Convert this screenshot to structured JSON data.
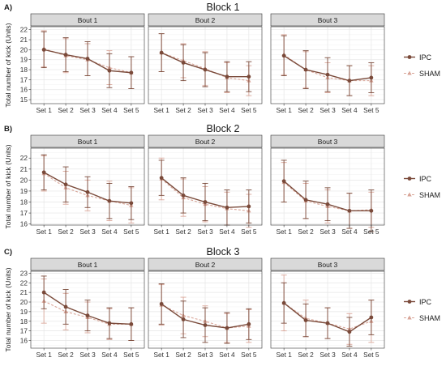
{
  "chart_data": {
    "type": "line",
    "ylabel": "Total number of kick (Units)",
    "categories": [
      "Set 1",
      "Set 2",
      "Set 3",
      "Set 4",
      "Set 5"
    ],
    "facets": [
      "Bout 1",
      "Bout 2",
      "Bout 3"
    ],
    "legend": {
      "position": "right",
      "entries": [
        {
          "name": "IPC",
          "color": "#7a4a3a"
        },
        {
          "name": "SHAM",
          "color": "#d9a699"
        }
      ]
    },
    "grid": true,
    "panels": [
      {
        "label": "A)",
        "title": "Block 1",
        "ylim": [
          14.6,
          22.3
        ],
        "yticks": [
          15,
          16,
          17,
          18,
          19,
          20,
          21,
          22
        ],
        "bouts": [
          {
            "IPC": {
              "mean": [
                20.0,
                19.5,
                19.1,
                17.9,
                17.7
              ],
              "err": [
                1.8,
                1.7,
                1.7,
                1.7,
                1.6
              ]
            },
            "SHAM": {
              "mean": [
                20.1,
                19.4,
                19.0,
                18.2,
                17.7
              ],
              "err": [
                1.8,
                1.7,
                1.6,
                1.7,
                1.6
              ]
            }
          },
          {
            "IPC": {
              "mean": [
                19.7,
                18.7,
                18.0,
                17.3,
                17.3
              ],
              "err": [
                1.9,
                1.8,
                1.7,
                1.5,
                1.5
              ]
            },
            "SHAM": {
              "mean": [
                19.7,
                18.9,
                18.1,
                17.2,
                16.9
              ],
              "err": [
                1.9,
                1.7,
                1.7,
                1.5,
                1.5
              ]
            }
          },
          {
            "IPC": {
              "mean": [
                19.4,
                18.0,
                17.5,
                16.9,
                17.2
              ],
              "err": [
                2.0,
                1.9,
                1.7,
                1.5,
                1.5
              ]
            },
            "SHAM": {
              "mean": [
                19.5,
                18.0,
                17.2,
                16.9,
                16.9
              ],
              "err": [
                2.0,
                1.8,
                1.5,
                1.5,
                1.5
              ]
            }
          }
        ]
      },
      {
        "label": "B)",
        "title": "Block 2",
        "ylim": [
          15.9,
          22.9
        ],
        "yticks": [
          16,
          17,
          18,
          19,
          20,
          21,
          22
        ],
        "bouts": [
          {
            "IPC": {
              "mean": [
                20.7,
                19.6,
                18.9,
                18.1,
                17.9
              ],
              "err": [
                1.6,
                1.6,
                1.4,
                1.6,
                1.5
              ]
            },
            "SHAM": {
              "mean": [
                20.6,
                19.3,
                18.6,
                18.1,
                17.7
              ],
              "err": [
                1.6,
                1.5,
                1.4,
                1.8,
                1.6
              ]
            }
          },
          {
            "IPC": {
              "mean": [
                20.2,
                18.6,
                18.0,
                17.5,
                17.6
              ],
              "err": [
                1.6,
                1.6,
                1.7,
                1.6,
                1.5
              ]
            },
            "SHAM": {
              "mean": [
                20.1,
                18.4,
                17.8,
                17.4,
                17.2
              ],
              "err": [
                1.9,
                1.7,
                1.6,
                1.5,
                1.5
              ]
            }
          },
          {
            "IPC": {
              "mean": [
                19.9,
                18.2,
                17.8,
                17.2,
                17.2
              ],
              "err": [
                1.9,
                1.7,
                1.5,
                1.6,
                1.9
              ]
            },
            "SHAM": {
              "mean": [
                19.8,
                18.1,
                17.6,
                17.2,
                17.3
              ],
              "err": [
                1.8,
                1.6,
                1.5,
                1.6,
                1.6
              ]
            }
          }
        ]
      },
      {
        "label": "C)",
        "title": "Block 3",
        "ylim": [
          15.2,
          23.2
        ],
        "yticks": [
          16,
          17,
          18,
          19,
          20,
          21,
          22,
          23
        ],
        "bouts": [
          {
            "IPC": {
              "mean": [
                21.0,
                19.5,
                18.6,
                17.8,
                17.7
              ],
              "err": [
                1.7,
                1.8,
                1.6,
                1.6,
                1.7
              ]
            },
            "SHAM": {
              "mean": [
                20.1,
                19.0,
                18.4,
                17.7,
                17.7
              ],
              "err": [
                2.3,
                1.9,
                1.6,
                1.6,
                1.7
              ]
            }
          },
          {
            "IPC": {
              "mean": [
                19.8,
                18.2,
                17.6,
                17.3,
                17.7
              ],
              "err": [
                2.1,
                1.9,
                1.8,
                1.6,
                1.6
              ]
            },
            "SHAM": {
              "mean": [
                19.7,
                18.6,
                18.0,
                17.3,
                17.5
              ],
              "err": [
                2.1,
                1.9,
                1.6,
                1.5,
                1.7
              ]
            }
          },
          {
            "IPC": {
              "mean": [
                19.9,
                18.1,
                17.8,
                16.9,
                18.4
              ],
              "err": [
                2.1,
                1.7,
                1.6,
                1.5,
                1.8
              ]
            },
            "SHAM": {
              "mean": [
                19.9,
                18.3,
                17.8,
                17.2,
                18.0
              ],
              "err": [
                2.9,
                1.9,
                1.6,
                1.6,
                2.2
              ]
            }
          }
        ]
      }
    ]
  }
}
